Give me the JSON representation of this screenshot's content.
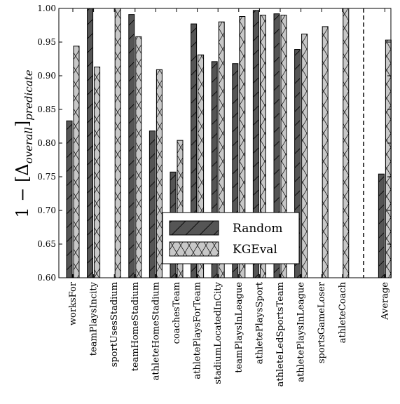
{
  "chart_data": {
    "type": "bar",
    "categories": [
      "worksFor",
      "teamPlaysIncity",
      "sportUsesStadium",
      "teamHomeStadium",
      "athleteHomeStadium",
      "coachesTeam",
      "athletePlaysForTeam",
      "stadiumLocatedInCity",
      "teamPlaysInLeague",
      "athletePlaysSport",
      "athleteLedSportsTeam",
      "athletePlaysInLeague",
      "sportsGameLoser",
      "athleteCoach",
      "Average"
    ],
    "series": [
      {
        "name": "Random",
        "color": "#555555",
        "hatch": "diagonal",
        "values": [
          0.833,
          1.0,
          null,
          0.991,
          0.818,
          0.757,
          0.977,
          0.921,
          0.918,
          0.997,
          0.992,
          0.939,
          null,
          null,
          0.754
        ]
      },
      {
        "name": "KGEval",
        "color": "#c8c8c8",
        "hatch": "cross",
        "values": [
          0.944,
          0.913,
          1.0,
          0.958,
          0.909,
          0.804,
          0.931,
          0.98,
          0.988,
          0.99,
          0.99,
          0.962,
          0.973,
          1.0,
          0.953
        ]
      }
    ],
    "ylabel": {
      "prefix": "1 − [Δ",
      "subscript_inner": "overall",
      "mid": "]",
      "subscript_outer": "predicate"
    },
    "ylim": [
      0.6,
      1.0
    ],
    "yticks": [
      "0.60",
      "0.65",
      "0.70",
      "0.75",
      "0.80",
      "0.85",
      "0.90",
      "0.95",
      "1.00"
    ],
    "separator_before": "Average",
    "separator_style": "dashed",
    "legend_position": "bottom-center",
    "grid": false
  }
}
